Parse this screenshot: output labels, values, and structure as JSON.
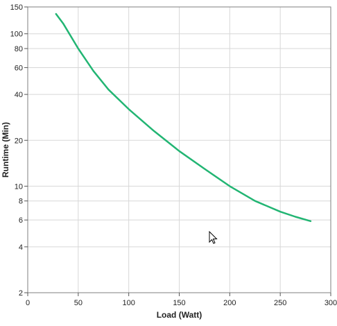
{
  "chart_data": {
    "type": "line",
    "xlabel": "Load (Watt)",
    "ylabel": "Runtime (Min)",
    "xlim": [
      0,
      300
    ],
    "ylim": [
      2,
      150
    ],
    "yscale": "log",
    "grid": true,
    "x_ticks": [
      "0",
      "50",
      "100",
      "150",
      "200",
      "250",
      "300"
    ],
    "y_ticks": [
      "2",
      "4",
      "6",
      "8",
      "10",
      "20",
      "40",
      "60",
      "80",
      "100",
      "150"
    ],
    "series": [
      {
        "color": "#22b573",
        "x": [
          28,
          35,
          50,
          65,
          80,
          100,
          125,
          150,
          175,
          200,
          225,
          250,
          265,
          280
        ],
        "y": [
          135,
          117,
          80,
          57,
          43,
          32,
          23,
          17,
          13,
          10,
          8,
          6.8,
          6.3,
          5.9
        ]
      }
    ]
  }
}
